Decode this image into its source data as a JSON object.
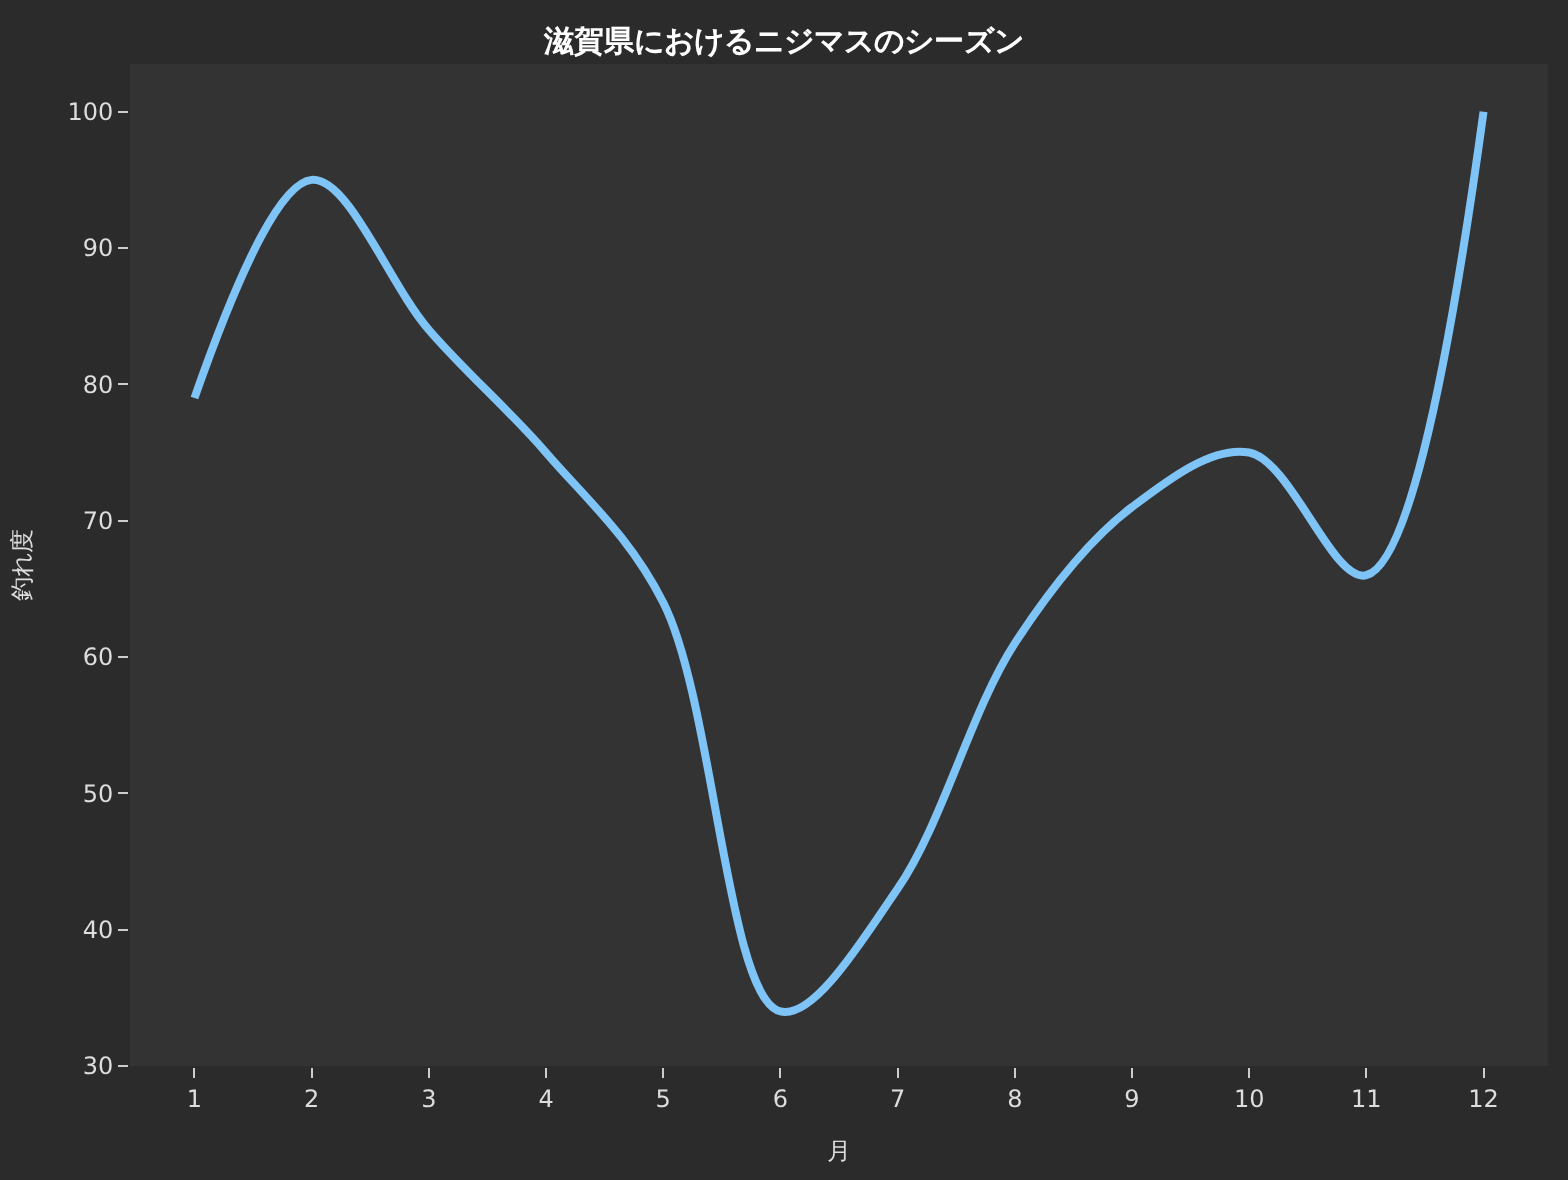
{
  "chart_data": {
    "type": "line",
    "title": "滋賀県におけるニジマスのシーズン",
    "xlabel": "月",
    "ylabel": "釣れ度",
    "x": [
      1,
      2,
      3,
      4,
      5,
      6,
      7,
      8,
      9,
      10,
      11,
      12
    ],
    "series": [
      {
        "color": "#7fc4f7",
        "values": [
          79,
          95,
          84,
          75,
          64,
          34,
          43,
          61,
          71,
          75,
          66,
          100
        ]
      }
    ],
    "xlim": [
      0.45,
      12.55
    ],
    "xticks": [
      1,
      2,
      3,
      4,
      5,
      6,
      7,
      8,
      9,
      10,
      11,
      12
    ],
    "ylim": [
      30,
      103.5
    ],
    "yticks": [
      30,
      40,
      50,
      60,
      70,
      80,
      90,
      100
    ],
    "grid": false,
    "marker": "none",
    "line_style": "solid"
  }
}
